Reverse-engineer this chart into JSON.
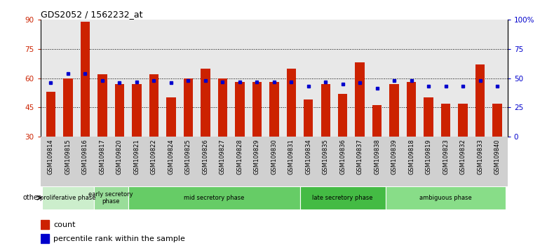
{
  "title": "GDS2052 / 1562232_at",
  "samples": [
    "GSM109814",
    "GSM109815",
    "GSM109816",
    "GSM109817",
    "GSM109820",
    "GSM109821",
    "GSM109822",
    "GSM109824",
    "GSM109825",
    "GSM109826",
    "GSM109827",
    "GSM109828",
    "GSM109829",
    "GSM109830",
    "GSM109831",
    "GSM109834",
    "GSM109835",
    "GSM109836",
    "GSM109837",
    "GSM109838",
    "GSM109839",
    "GSM109818",
    "GSM109819",
    "GSM109823",
    "GSM109832",
    "GSM109833",
    "GSM109840"
  ],
  "counts": [
    53,
    60,
    89,
    62,
    57,
    57,
    62,
    50,
    60,
    65,
    60,
    58,
    58,
    58,
    65,
    49,
    57,
    52,
    68,
    46,
    57,
    58,
    50,
    47,
    47,
    67,
    47
  ],
  "percentiles": [
    46,
    54,
    54,
    48,
    46,
    47,
    48,
    46,
    48,
    48,
    47,
    47,
    47,
    47,
    47,
    43,
    47,
    45,
    46,
    41,
    48,
    48,
    43,
    43,
    43,
    48,
    43
  ],
  "phases": [
    {
      "label": "proliferative phase",
      "start": 0,
      "end": 3,
      "color": "#cceecc"
    },
    {
      "label": "early secretory\nphase",
      "start": 3,
      "end": 5,
      "color": "#99dd99"
    },
    {
      "label": "mid secretory phase",
      "start": 5,
      "end": 15,
      "color": "#66cc66"
    },
    {
      "label": "late secretory phase",
      "start": 15,
      "end": 20,
      "color": "#44bb44"
    },
    {
      "label": "ambiguous phase",
      "start": 20,
      "end": 27,
      "color": "#88dd88"
    }
  ],
  "bar_color": "#cc2200",
  "dot_color": "#0000cc",
  "ylim_left": [
    30,
    90
  ],
  "ylim_right": [
    0,
    100
  ],
  "yticks_left": [
    30,
    45,
    60,
    75,
    90
  ],
  "yticks_right": [
    0,
    25,
    50,
    75,
    100
  ],
  "ytick_labels_right": [
    "0",
    "25",
    "50",
    "75",
    "100%"
  ],
  "bg_color": "#e8e8e8",
  "title_fontsize": 9,
  "axis_label_color_left": "#cc2200",
  "axis_label_color_right": "#0000cc"
}
